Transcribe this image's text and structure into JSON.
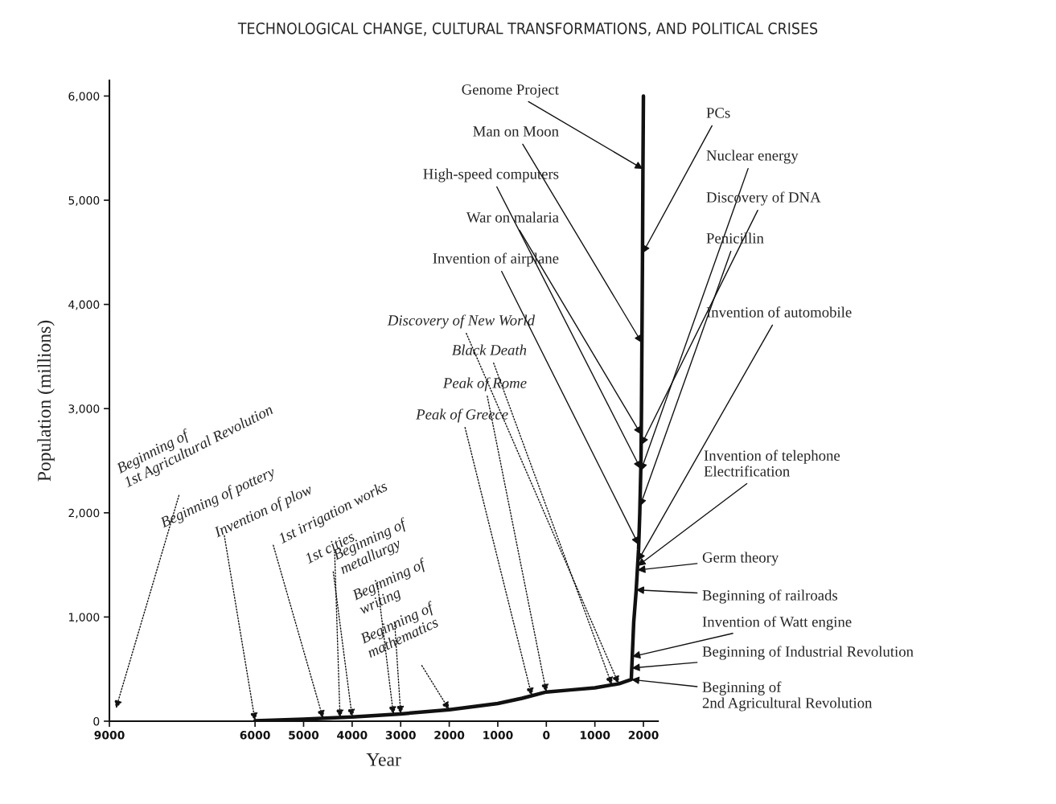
{
  "chart_data": {
    "type": "line",
    "title": "TECHNOLOGICAL CHANGE, CULTURAL TRANSFORMATIONS, AND POLITICAL CRISES",
    "xlabel": "Year",
    "ylabel": "Population (millions)",
    "x": [
      -6000,
      -5000,
      -4000,
      -3000,
      -2000,
      -1000,
      -500,
      0,
      500,
      1000,
      1500,
      1750,
      1800,
      1850,
      1900,
      1925,
      1950,
      1960,
      1970,
      1980,
      1990,
      2000
    ],
    "series": [
      {
        "color": "#111111",
        "values": [
          5,
          20,
          40,
          70,
          110,
          170,
          220,
          280,
          300,
          320,
          360,
          400,
          950,
          1250,
          1650,
          2000,
          2500,
          3000,
          3700,
          4400,
          5300,
          6000
        ]
      }
    ],
    "xlim": [
      -9000,
      2300
    ],
    "ylim": [
      0,
      6150
    ],
    "xticks": [
      {
        "value": -9000,
        "label": "9000"
      },
      {
        "value": -6000,
        "label": "6000"
      },
      {
        "value": -5000,
        "label": "5000"
      },
      {
        "value": -4000,
        "label": "4000"
      },
      {
        "value": -3000,
        "label": "3000"
      },
      {
        "value": -2000,
        "label": "2000"
      },
      {
        "value": -1000,
        "label": "1000"
      },
      0,
      1000,
      2000
    ],
    "yticks": [
      0,
      {
        "value": 1000,
        "label": "1,000"
      },
      {
        "value": 2000,
        "label": "2,000"
      },
      {
        "value": 3000,
        "label": "3,000"
      },
      {
        "value": 4000,
        "label": "4,000"
      },
      {
        "value": 5000,
        "label": "5,000"
      },
      {
        "value": 6000,
        "label": "6,000"
      }
    ],
    "annotations": [
      "Beginning of\n1st Agricultural Revolution",
      {
        "text": "Beginning of pottery",
        "x": -6000,
        "y": 5
      },
      {
        "text": "Invention of plow",
        "x": -4600,
        "y": 28
      },
      {
        "text": "1st irrigation works",
        "x": -4250,
        "y": 35
      },
      {
        "text": "1st cities",
        "x": -4000,
        "y": 40
      },
      {
        "text": "Beginning of\nmetallurgy",
        "x": -3150,
        "y": 65
      },
      {
        "text": "Beginning of\nwriting",
        "x": -3000,
        "y": 70
      },
      {
        "text": "Beginning of\nmathematics",
        "x": -2000,
        "y": 110
      },
      {
        "text": "Peak of Greece",
        "x": -300,
        "y": 244
      },
      {
        "text": "Peak of Rome",
        "x": 0,
        "y": 280
      },
      {
        "text": "Black Death",
        "x": 1350,
        "y": 348
      },
      {
        "text": "Discovery of New World",
        "x": 1490,
        "y": 359
      },
      {
        "text": "Genome Project",
        "x": 1990,
        "y": 5300
      },
      {
        "text": "Man on Moon",
        "x": 1969,
        "y": 3630
      },
      {
        "text": "High-speed computers",
        "x": 1946,
        "y": 2420
      },
      {
        "text": "War on malaria",
        "x": 1955,
        "y": 2750
      },
      {
        "text": "Invention of airplane",
        "x": 1903,
        "y": 1692
      },
      {
        "text": "PCs",
        "x": 1981,
        "y": 4490
      },
      {
        "text": "Nuclear energy",
        "x": 1945,
        "y": 2400
      },
      {
        "text": "Discovery of DNA",
        "x": 1953,
        "y": 2650
      },
      {
        "text": "Penicillin",
        "x": 1928,
        "y": 2060
      },
      {
        "text": "Invention of automobile",
        "x": 1886,
        "y": 1538
      },
      {
        "text": "Invention of telephone\nElectrification",
        "x": 1880,
        "y": 1490
      },
      {
        "text": "Germ theory",
        "x": 1875,
        "y": 1450
      },
      "Beginning of railroads",
      {
        "text": "Invention of Watt engine",
        "x": 1770,
        "y": 620
      },
      {
        "text": "Beginning of Industrial Revolution",
        "x": 1760,
        "y": 510
      },
      {
        "text": "Beginning of\n2nd Agricultural Revolution",
        "x": 1750,
        "y": 400
      }
    ]
  }
}
